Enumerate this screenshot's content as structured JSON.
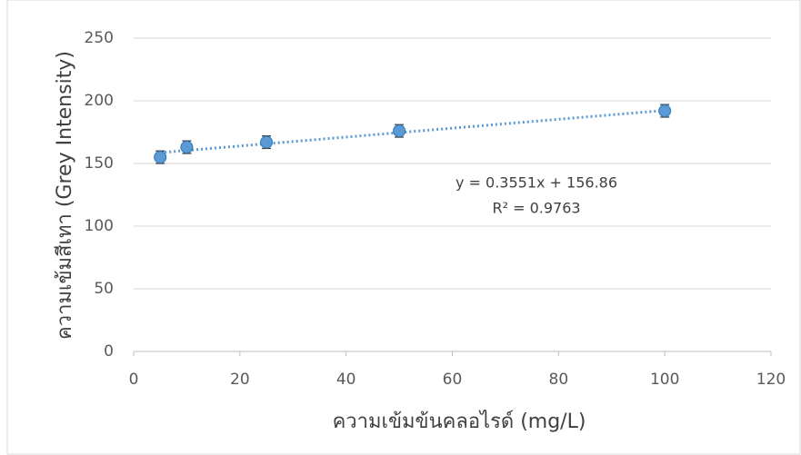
{
  "chart_data": {
    "type": "scatter",
    "x_label": "ความเข้มข้นคลอไรด์ (mg/L)",
    "y_label": "ความเข้มสีเทา (Grey Intensity)",
    "series": [
      {
        "x": [
          5,
          10,
          25,
          50,
          100
        ],
        "values": [
          155,
          163,
          167,
          176,
          192
        ],
        "errors": [
          5,
          5,
          5,
          5,
          5
        ],
        "color": "#5b9bd5"
      }
    ],
    "trendline": {
      "slope": 0.3551,
      "intercept": 156.86,
      "equation": "y = 0.3551x + 156.86",
      "r2": "R² = 0.9763",
      "color": "#5b9bd5"
    },
    "xlim": [
      0,
      120
    ],
    "xticks": [
      0,
      20,
      40,
      60,
      80,
      100,
      120
    ],
    "ylim": [
      0,
      250
    ],
    "yticks": [
      0,
      50,
      100,
      150,
      200,
      250
    ],
    "grid": true
  }
}
